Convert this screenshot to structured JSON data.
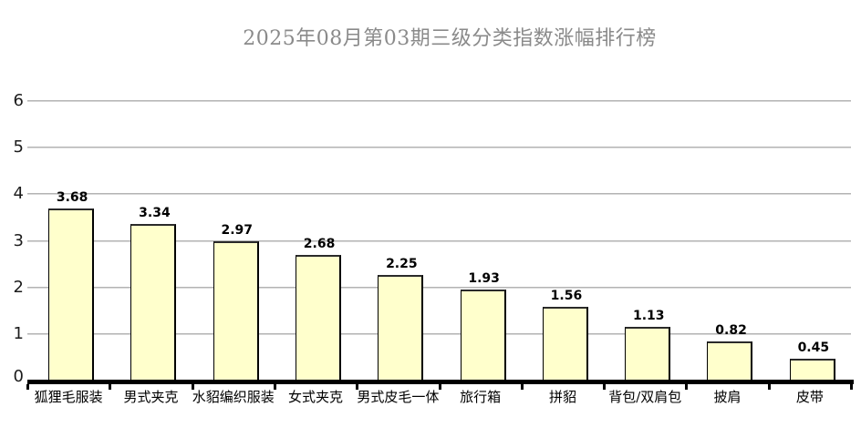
{
  "title": "2025年08月第03期三级分类指数涨幅排行榜",
  "colors": {
    "title_text": "#8a8a8a",
    "bar_fill": "#FFFFCC",
    "bar_border": "#000000",
    "gridline": "#a2a2a2",
    "axis_line": "#000000",
    "value_label": "#000000",
    "background": "#ffffff"
  },
  "chart_data": {
    "type": "bar",
    "title": "2025年08月第03期三级分类指数涨幅排行榜",
    "categories": [
      "狐狸毛服装",
      "男式夹克",
      "水貂编织服装",
      "女式夹克",
      "男式皮毛一体",
      "旅行箱",
      "拼貂",
      "背包/双肩包",
      "披肩",
      "皮带"
    ],
    "values": [
      3.68,
      3.34,
      2.97,
      2.68,
      2.25,
      1.93,
      1.56,
      1.13,
      0.82,
      0.45
    ],
    "value_labels": [
      "3.68",
      "3.34",
      "2.97",
      "2.68",
      "2.25",
      "1.93",
      "1.56",
      "1.13",
      "0.82",
      "0.45"
    ],
    "xlabel": "",
    "ylabel": "",
    "ylim": [
      0,
      6
    ],
    "yticks": [
      0,
      1,
      2,
      3,
      4,
      5,
      6
    ],
    "grid": true,
    "legend_position": "none",
    "sort_order": "descending"
  }
}
